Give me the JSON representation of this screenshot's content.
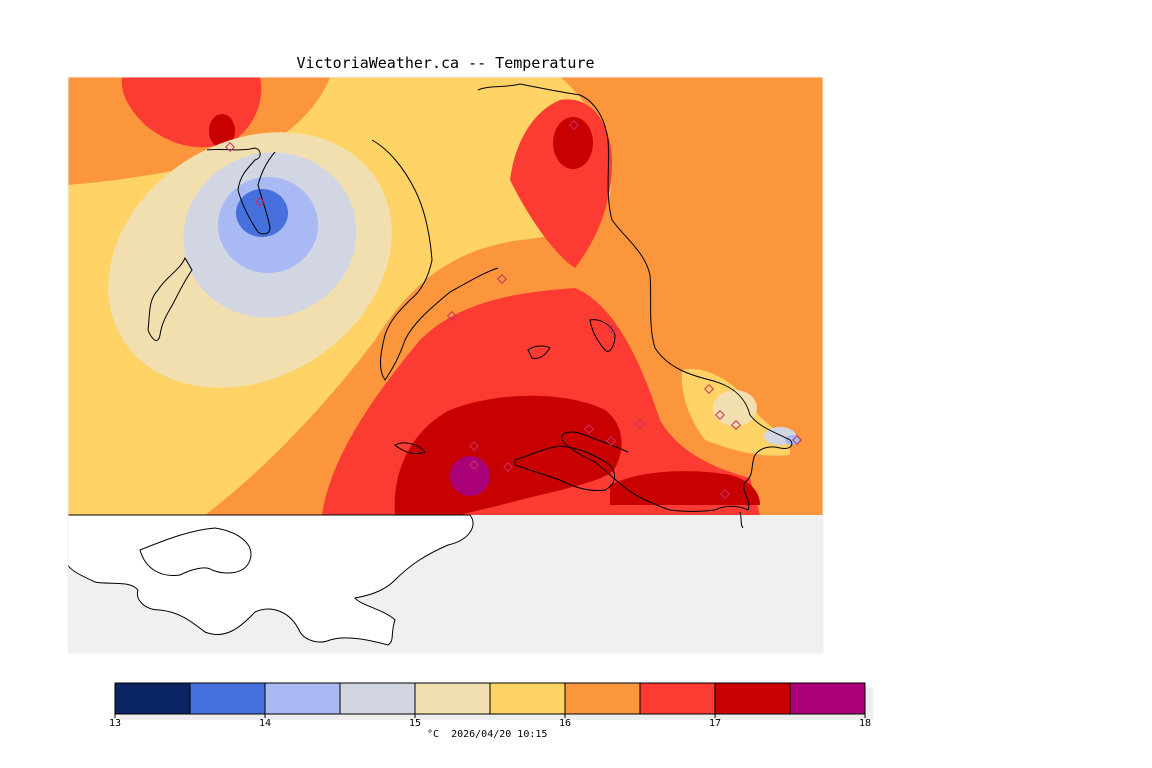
{
  "title": "VictoriaWeather.ca -- Temperature",
  "colorbar": {
    "bins": [
      {
        "min": 13.0,
        "max": 13.5,
        "color": "#0b2464"
      },
      {
        "min": 13.5,
        "max": 14.0,
        "color": "#4670dc"
      },
      {
        "min": 14.0,
        "max": 14.5,
        "color": "#a8b9f4"
      },
      {
        "min": 14.5,
        "max": 15.0,
        "color": "#d2d6e2"
      },
      {
        "min": 15.0,
        "max": 15.5,
        "color": "#f1dfb0"
      },
      {
        "min": 15.5,
        "max": 16.0,
        "color": "#ffd366"
      },
      {
        "min": 16.0,
        "max": 16.5,
        "color": "#fc963c"
      },
      {
        "min": 16.5,
        "max": 17.0,
        "color": "#fc3c32"
      },
      {
        "min": 17.0,
        "max": 17.5,
        "color": "#c80000"
      },
      {
        "min": 17.5,
        "max": 18.0,
        "color": "#aa0078"
      }
    ],
    "tick_labels": [
      "13",
      "14",
      "15",
      "16",
      "17",
      "18"
    ]
  },
  "caption": "°C  2026/04/20 10:15",
  "colors": {
    "water": "#f0f0f0",
    "coastline": "#000000",
    "station_marker": "#c83264"
  }
}
